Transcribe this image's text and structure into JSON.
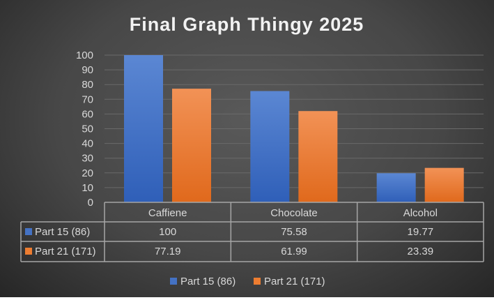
{
  "chart_data": {
    "type": "bar",
    "title": "Final Graph Thingy 2025",
    "categories": [
      "Caffiene",
      "Chocolate",
      "Alcohol"
    ],
    "series": [
      {
        "name": "Part 15 (86)",
        "values": [
          100,
          75.58,
          19.77
        ],
        "labels": [
          "100",
          "75.58",
          "19.77"
        ],
        "color": "#4472c4"
      },
      {
        "name": "Part 21 (171)",
        "values": [
          77.19,
          61.99,
          23.39
        ],
        "labels": [
          "77.19",
          "61.99",
          "23.39"
        ],
        "color": "#ed7d31"
      }
    ],
    "ylim": [
      0,
      100
    ],
    "yticks": [
      0,
      10,
      20,
      30,
      40,
      50,
      60,
      70,
      80,
      90,
      100
    ],
    "grid": true,
    "data_table": true,
    "legend": "bottom"
  }
}
